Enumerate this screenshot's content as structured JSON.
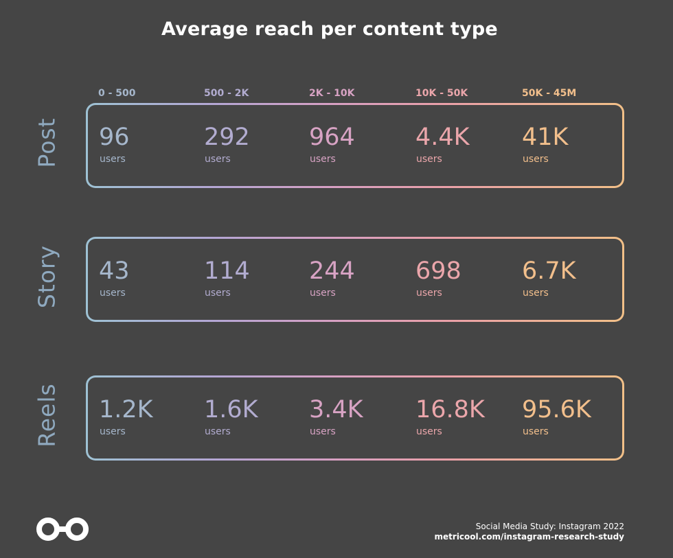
{
  "chart_data": {
    "type": "table",
    "title": "Average reach per content type",
    "columns": [
      "0 - 500",
      "500 - 2K",
      "2K - 10K",
      "10K - 50K",
      "50K - 45M"
    ],
    "unit": "users",
    "rows": [
      {
        "name": "Post",
        "values": [
          "96",
          "292",
          "964",
          "4.4K",
          "41K"
        ]
      },
      {
        "name": "Story",
        "values": [
          "43",
          "114",
          "244",
          "698",
          "6.7K"
        ]
      },
      {
        "name": "Reels",
        "values": [
          "1.2K",
          "1.6K",
          "3.4K",
          "16.8K",
          "95.6K"
        ]
      }
    ]
  },
  "colors": {
    "background": "#454545",
    "title": "#ffffff",
    "row_label": "#8fa9bf",
    "columns": [
      "#a6b7cc",
      "#b2acd0",
      "#d8a3c4",
      "#eba6ab",
      "#f2bf8c"
    ]
  },
  "footer": {
    "logo_icon": "metricool-infinity-icon",
    "study": "Social Media Study: Instagram 2022",
    "url": "metricool.com/instagram-research-study"
  }
}
